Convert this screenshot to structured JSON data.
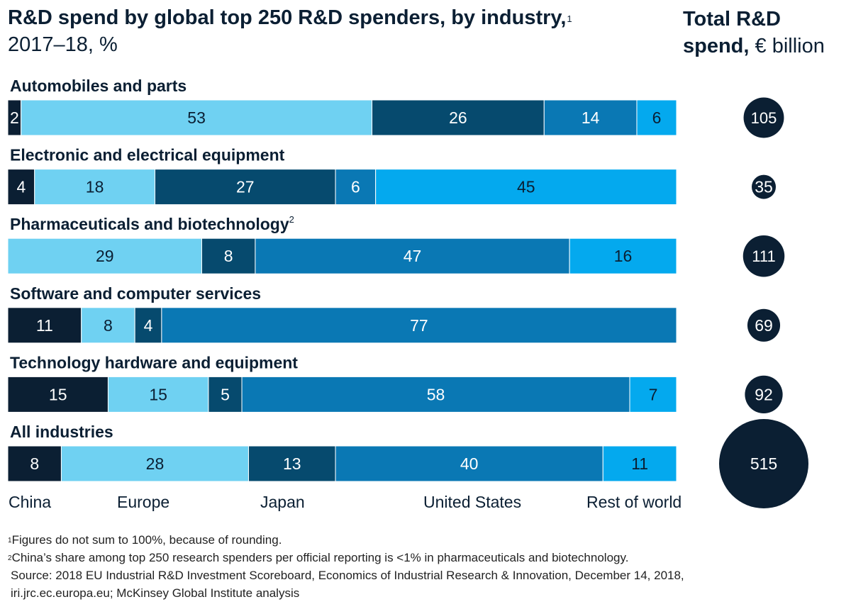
{
  "header": {
    "title": "R&D spend by global top 250 R&D spenders, by industry,",
    "title_sup": "1",
    "subtitle": "2017–18, %",
    "total_bold": "Total R&D",
    "total_bold2": "spend,",
    "total_rest": "€ billion"
  },
  "colors": {
    "China": "#0b1f33",
    "Europe": "#6fd1f2",
    "Japan": "#064a6e",
    "United States": "#0a78b4",
    "Rest of world": "#04a9ee",
    "bubble": "#0b1f33"
  },
  "chart_data": {
    "type": "stacked-bar",
    "title": "R&D spend by global top 250 R&D spenders, by industry",
    "unit": "%",
    "regions": [
      "China",
      "Europe",
      "Japan",
      "United States",
      "Rest of world"
    ],
    "categories": [
      {
        "name": "Automobiles and parts",
        "sup": "",
        "segments": [
          2,
          53,
          26,
          14,
          6
        ],
        "total": 105
      },
      {
        "name": "Electronic and electrical equipment",
        "sup": "",
        "segments": [
          4,
          18,
          27,
          6,
          45
        ],
        "total": 35
      },
      {
        "name": "Pharmaceuticals and biotechnology",
        "sup": "2",
        "segments": [
          null,
          29,
          8,
          47,
          16
        ],
        "total": 111
      },
      {
        "name": "Software and computer services",
        "sup": "",
        "segments": [
          11,
          8,
          4,
          77,
          null
        ],
        "total": 69
      },
      {
        "name": "Technology hardware and equipment",
        "sup": "",
        "segments": [
          15,
          15,
          5,
          58,
          7
        ],
        "total": 92
      },
      {
        "name": "All industries",
        "sup": "",
        "segments": [
          8,
          28,
          13,
          40,
          11
        ],
        "total": 515
      }
    ],
    "legend": [
      "China",
      "Europe",
      "Japan",
      "United States",
      "Rest of world"
    ],
    "total_label": "Total R&D spend, € billion"
  },
  "footnotes": {
    "n1_sup": "1",
    "n1": "Figures do not sum to 100%, because of rounding.",
    "n2_sup": "2",
    "n2": "China’s share among top 250 research spenders per official reporting is <1% in pharmaceuticals and biotechnology.",
    "source1": "Source: 2018 EU Industrial R&D Investment Scoreboard, Economics of Industrial Research & Innovation, December 14, 2018,",
    "source2": "iri.jrc.ec.europa.eu; McKinsey Global Institute analysis"
  }
}
